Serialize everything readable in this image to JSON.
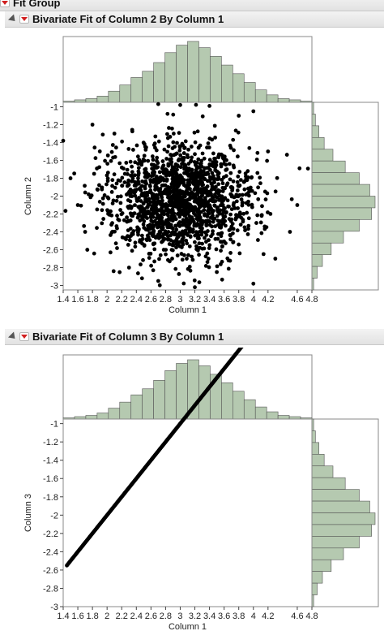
{
  "group_header": {
    "title": "Fit Group"
  },
  "colors": {
    "histogram_fill": "#b5c9b0",
    "histogram_stroke": "#555555",
    "point": "#000000"
  },
  "chart_data": [
    {
      "type": "scatter",
      "title": "Bivariate Fit of Column 2 By Column 1",
      "xlabel": "Column 1",
      "ylabel": "Column 2",
      "xlim": [
        1.4,
        4.8
      ],
      "ylim": [
        -3.05,
        -0.95
      ],
      "x_ticks": [
        "1.4",
        "1.6",
        "1.8",
        "2",
        "2.2",
        "2.4",
        "2.6",
        "2.8",
        "3",
        "3.2",
        "3.4",
        "3.6",
        "3.8",
        "4",
        "4.2",
        "4.6",
        "4.8"
      ],
      "y_ticks": [
        "-1",
        "-1.2",
        "-1.4",
        "-1.6",
        "-1.8",
        "-2",
        "-2.2",
        "-2.4",
        "-2.6",
        "-2.8",
        "-3"
      ],
      "points": [
        [
          2.7,
          -0.97
        ],
        [
          3.0,
          -0.98
        ],
        [
          3.4,
          -0.99
        ],
        [
          4.0,
          -1.05
        ],
        [
          1.4,
          -1.38
        ],
        [
          1.5,
          -1.8
        ],
        [
          1.6,
          -2.1
        ],
        [
          1.7,
          -2.4
        ],
        [
          4.6,
          -2.1
        ],
        [
          4.5,
          -2.4
        ],
        [
          4.3,
          -2.7
        ],
        [
          4.0,
          -2.98
        ],
        [
          3.2,
          -3.02
        ],
        [
          2.7,
          -2.95
        ],
        [
          3.8,
          -1.1
        ],
        [
          2.1,
          -1.3
        ],
        [
          2.3,
          -2.8
        ],
        [
          3.5,
          -2.85
        ],
        [
          4.2,
          -1.5
        ],
        [
          1.8,
          -1.2
        ]
      ],
      "histogram_x": [
        1,
        2,
        3,
        5,
        9,
        14,
        20,
        25,
        32,
        40,
        46,
        49,
        44,
        37,
        30,
        23,
        16,
        10,
        6,
        3,
        2,
        1
      ],
      "histogram_y": [
        1,
        2,
        4,
        7,
        12,
        19,
        27,
        33,
        36,
        34,
        27,
        18,
        11,
        6,
        3,
        1
      ],
      "points_generated": 1600,
      "legend": "none"
    },
    {
      "type": "scatter",
      "title": "Bivariate Fit of Column 3 By Column 1",
      "xlabel": "Column 1",
      "ylabel": "Column 3",
      "xlim": [
        1.4,
        4.8
      ],
      "ylim": [
        -3.0,
        -0.95
      ],
      "x_ticks": [
        "1.4",
        "1.6",
        "1.8",
        "2",
        "2.2",
        "2.4",
        "2.6",
        "2.8",
        "3",
        "3.2",
        "3.4",
        "3.6",
        "3.8",
        "4",
        "4.2",
        "4.6",
        "4.8"
      ],
      "y_ticks": [
        "-1",
        "-1.2",
        "-1.4",
        "-1.6",
        "-1.8",
        "-2",
        "-2.2",
        "-2.4",
        "-2.6",
        "-2.8",
        "-3"
      ],
      "line_relation": "Column 3 = Column 1 - 4",
      "x_range": [
        1.45,
        4.75
      ],
      "histogram_x": [
        1,
        2,
        3,
        5,
        9,
        14,
        20,
        25,
        32,
        40,
        46,
        49,
        44,
        37,
        30,
        23,
        16,
        10,
        6,
        3,
        2,
        1
      ],
      "histogram_y": [
        1,
        2,
        4,
        7,
        12,
        19,
        27,
        33,
        36,
        34,
        27,
        18,
        11,
        6,
        3,
        1
      ],
      "legend": "none"
    }
  ]
}
